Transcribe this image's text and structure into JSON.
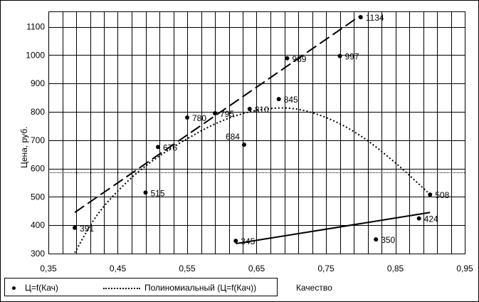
{
  "chart_data": {
    "type": "scatter",
    "title": "",
    "xlabel": "Качество",
    "ylabel": "Цена, руб.",
    "xlim": [
      0.35,
      0.95
    ],
    "ylim": [
      300,
      1150
    ],
    "xticks": [
      "0,35",
      "0,45",
      "0,55",
      "0,65",
      "0,75",
      "0,85",
      "0,95"
    ],
    "yticks": [
      "300",
      "400",
      "500",
      "600",
      "700",
      "800",
      "900",
      "1000",
      "1100"
    ],
    "grid": true,
    "reference_line_y": 587,
    "points": [
      {
        "x": 0.388,
        "y": 391,
        "label": "391"
      },
      {
        "x": 0.49,
        "y": 515,
        "label": "515"
      },
      {
        "x": 0.508,
        "y": 676,
        "label": "676"
      },
      {
        "x": 0.55,
        "y": 780,
        "label": "780"
      },
      {
        "x": 0.59,
        "y": 795,
        "label": "795"
      },
      {
        "x": 0.62,
        "y": 345,
        "label": "345"
      },
      {
        "x": 0.632,
        "y": 684,
        "label": "684"
      },
      {
        "x": 0.64,
        "y": 810,
        "label": "810"
      },
      {
        "x": 0.682,
        "y": 845,
        "label": "845"
      },
      {
        "x": 0.694,
        "y": 989,
        "label": "989"
      },
      {
        "x": 0.77,
        "y": 997,
        "label": "997"
      },
      {
        "x": 0.8,
        "y": 1134,
        "label": "1134"
      },
      {
        "x": 0.822,
        "y": 350,
        "label": "350"
      },
      {
        "x": 0.884,
        "y": 424,
        "label": "424"
      },
      {
        "x": 0.9,
        "y": 508,
        "label": "508"
      }
    ],
    "trend_lines": [
      {
        "style": "dashed",
        "points": [
          [
            0.388,
            445
          ],
          [
            0.8,
            1140
          ]
        ]
      },
      {
        "style": "solid",
        "points": [
          [
            0.62,
            335
          ],
          [
            0.9,
            445
          ]
        ]
      }
    ],
    "polynomial_curve": [
      [
        0.388,
        303
      ],
      [
        0.42,
        435
      ],
      [
        0.46,
        545
      ],
      [
        0.5,
        627
      ],
      [
        0.55,
        705
      ],
      [
        0.6,
        768
      ],
      [
        0.65,
        805
      ],
      [
        0.7,
        812
      ],
      [
        0.75,
        780
      ],
      [
        0.8,
        715
      ],
      [
        0.85,
        620
      ],
      [
        0.9,
        508
      ]
    ],
    "legend": {
      "placement": "bottom-left",
      "entries": [
        {
          "marker": "dot",
          "label": "Ц=f(Кач)"
        },
        {
          "marker": "dotted-line",
          "label": "Полиномиальный (Ц=f(Кач))"
        }
      ]
    },
    "colors": {
      "marks": "#000000",
      "background": "#ffffff",
      "grid": "#000000"
    }
  }
}
